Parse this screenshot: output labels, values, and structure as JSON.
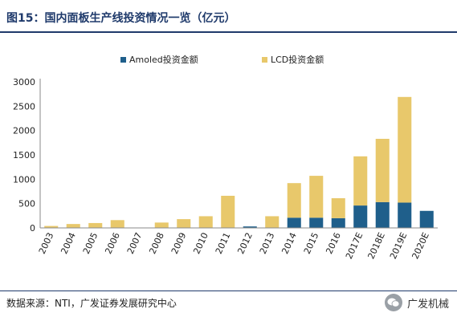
{
  "header": {
    "title": "图15：国内面板生产线投资情况一览（亿元）"
  },
  "footer": {
    "source": "数据来源：NTI，广发证券发展研究中心",
    "brand": "广发机械",
    "brand_icon": "wechat-icon"
  },
  "colors": {
    "amoled": "#1f5f8b",
    "lcd": "#e8c86b",
    "text": "#222222",
    "title": "#1f3a6b"
  },
  "chart_data": {
    "type": "bar",
    "stacked": true,
    "categories": [
      "2003",
      "2004",
      "2005",
      "2006",
      "2007",
      "2008",
      "2009",
      "2010",
      "2011",
      "2012",
      "2013",
      "2014",
      "2015",
      "2016",
      "2017E",
      "2018E",
      "2019E",
      "2020E"
    ],
    "series": [
      {
        "name": "Amoled投资金额",
        "values": [
          0,
          0,
          0,
          0,
          0,
          0,
          0,
          0,
          0,
          30,
          0,
          210,
          210,
          200,
          460,
          530,
          520,
          350
        ]
      },
      {
        "name": "LCD投资金额",
        "values": [
          40,
          80,
          100,
          160,
          0,
          110,
          180,
          240,
          660,
          0,
          240,
          710,
          860,
          410,
          1010,
          1300,
          2170,
          0
        ]
      }
    ],
    "yticks": [
      0,
      500,
      1000,
      1500,
      2000,
      2500,
      3000
    ],
    "ylim": [
      0,
      3000
    ],
    "legend_position": "top-center",
    "grid": false
  }
}
